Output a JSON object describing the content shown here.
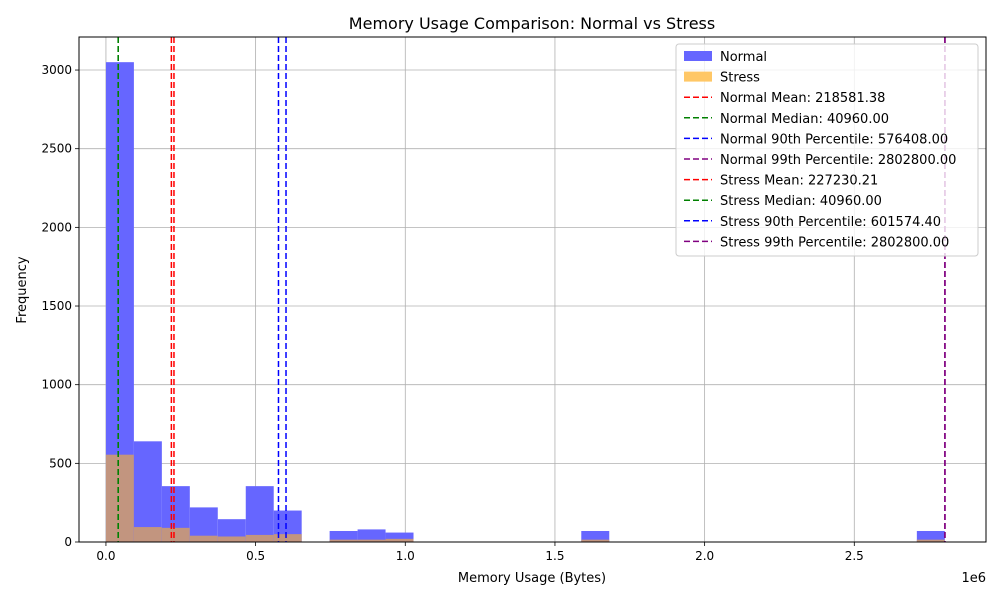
{
  "chart_data": {
    "type": "bar",
    "title": "Memory Usage Comparison: Normal vs Stress",
    "xlabel": "Memory Usage (Bytes)",
    "ylabel": "Frequency",
    "x_offset_label": "1e6",
    "xlim": [
      -0.09,
      2.94
    ],
    "ylim": [
      0,
      3210
    ],
    "x_ticks": [
      {
        "value": 0,
        "label": "0.0"
      },
      {
        "value": 0.5,
        "label": "0.5"
      },
      {
        "value": 1.0,
        "label": "1.0"
      },
      {
        "value": 1.5,
        "label": "1.5"
      },
      {
        "value": 2.0,
        "label": "2.0"
      },
      {
        "value": 2.5,
        "label": "2.5"
      }
    ],
    "y_ticks": [
      {
        "value": 0,
        "label": "0"
      },
      {
        "value": 500,
        "label": "500"
      },
      {
        "value": 1000,
        "label": "1000"
      },
      {
        "value": 1500,
        "label": "1500"
      },
      {
        "value": 2000,
        "label": "2000"
      },
      {
        "value": 2500,
        "label": "2500"
      },
      {
        "value": 3000,
        "label": "3000"
      }
    ],
    "grid": true,
    "legend_position": "top-right",
    "bin_width": 0.0934,
    "bin_starts": [
      0,
      0.0934,
      0.1868,
      0.2802,
      0.3737,
      0.4671,
      0.5605,
      0.6539,
      0.7473,
      0.8407,
      0.9341,
      1.0276,
      1.121,
      1.2144,
      1.3078,
      1.4012,
      1.4946,
      1.588,
      1.6814,
      1.7749,
      1.8683,
      1.9617,
      2.0551,
      2.1485,
      2.2419,
      2.3353,
      2.4288,
      2.5222,
      2.6156,
      2.709
    ],
    "series": [
      {
        "name": "Normal",
        "color": "#6666ff",
        "values": [
          3050,
          640,
          355,
          220,
          145,
          355,
          200,
          0,
          70,
          80,
          60,
          0,
          0,
          0,
          0,
          0,
          0,
          70,
          0,
          0,
          0,
          0,
          0,
          0,
          0,
          0,
          0,
          0,
          0,
          70
        ]
      },
      {
        "name": "Stress",
        "color": "#ffc766",
        "values": [
          555,
          95,
          90,
          40,
          35,
          45,
          50,
          0,
          15,
          15,
          20,
          0,
          0,
          0,
          0,
          0,
          0,
          15,
          0,
          0,
          0,
          0,
          0,
          0,
          0,
          0,
          0,
          0,
          0,
          15
        ]
      }
    ],
    "overlap_color": "#c2957f",
    "reference_lines": [
      {
        "label": "Normal Mean: 218581.38",
        "value": 0.218581,
        "color": "#ff0000"
      },
      {
        "label": "Normal Median: 40960.00",
        "value": 0.04096,
        "color": "#008000"
      },
      {
        "label": "Normal 90th Percentile: 576408.00",
        "value": 0.576408,
        "color": "#0000ff"
      },
      {
        "label": "Normal 99th Percentile: 2802800.00",
        "value": 2.8028,
        "color": "#800080"
      },
      {
        "label": "Stress Mean: 227230.21",
        "value": 0.22723,
        "color": "#ff0000"
      },
      {
        "label": "Stress Median: 40960.00",
        "value": 0.04096,
        "color": "#008000"
      },
      {
        "label": "Stress 90th Percentile: 601574.40",
        "value": 0.601574,
        "color": "#0000ff"
      },
      {
        "label": "Stress 99th Percentile: 2802800.00",
        "value": 2.8028,
        "color": "#800080"
      }
    ]
  }
}
